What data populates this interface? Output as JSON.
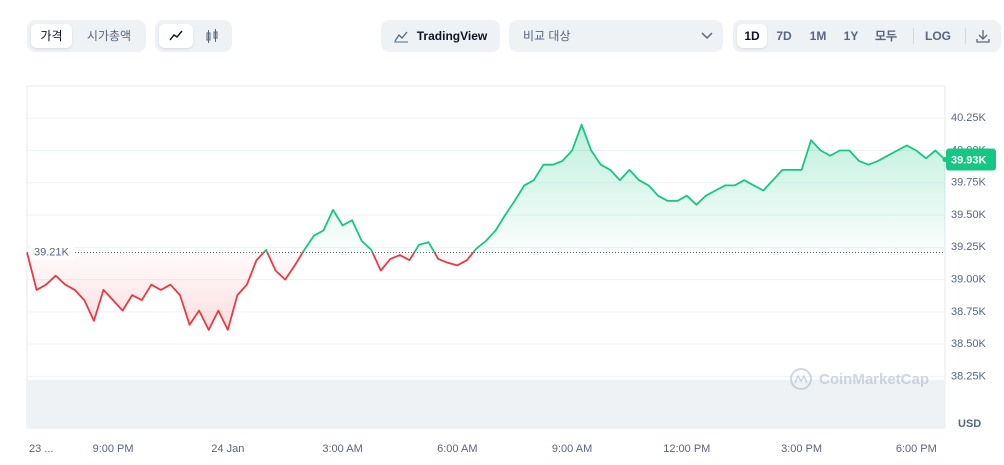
{
  "toolbar": {
    "view_tabs": [
      "가격",
      "시가총액"
    ],
    "tradingview": "TradingView",
    "compare": "비교 대상",
    "ranges": [
      "1D",
      "7D",
      "1M",
      "1Y",
      "모두"
    ],
    "log": "LOG"
  },
  "chart_data": {
    "type": "line",
    "categories": [
      "23 ...",
      null,
      null,
      null,
      null,
      null,
      null,
      null,
      null,
      "9:00 PM",
      null,
      null,
      null,
      null,
      null,
      null,
      null,
      null,
      null,
      null,
      null,
      "24 Jan",
      null,
      null,
      null,
      null,
      null,
      null,
      null,
      null,
      null,
      null,
      null,
      "3:00 AM",
      null,
      null,
      null,
      null,
      null,
      null,
      null,
      null,
      null,
      null,
      null,
      "6:00 AM",
      null,
      null,
      null,
      null,
      null,
      null,
      null,
      null,
      null,
      null,
      null,
      "9:00 AM",
      null,
      null,
      null,
      null,
      null,
      null,
      null,
      null,
      null,
      null,
      null,
      "12:00 PM",
      null,
      null,
      null,
      null,
      null,
      null,
      null,
      null,
      null,
      null,
      null,
      "3:00 PM",
      null,
      null,
      null,
      null,
      null,
      null,
      null,
      null,
      null,
      null,
      null,
      "6:00 PM",
      null,
      null,
      null
    ],
    "values": [
      39210,
      38920,
      38960,
      39030,
      38960,
      38920,
      38840,
      38680,
      38920,
      38840,
      38760,
      38880,
      38840,
      38960,
      38920,
      38960,
      38880,
      38650,
      38760,
      38610,
      38760,
      38610,
      38880,
      38960,
      39150,
      39230,
      39070,
      39000,
      39110,
      39230,
      39340,
      39380,
      39540,
      39420,
      39460,
      39300,
      39230,
      39070,
      39160,
      39190,
      39150,
      39270,
      39290,
      39160,
      39130,
      39110,
      39150,
      39240,
      39300,
      39380,
      39500,
      39610,
      39730,
      39770,
      39890,
      39890,
      39920,
      40000,
      40200,
      40000,
      39890,
      39850,
      39770,
      39850,
      39770,
      39730,
      39650,
      39610,
      39610,
      39650,
      39580,
      39650,
      39690,
      39730,
      39730,
      39770,
      39730,
      39690,
      39770,
      39850,
      39850,
      39850,
      40080,
      40000,
      39960,
      40000,
      40000,
      39920,
      39890,
      39920,
      39960,
      40000,
      40040,
      40000,
      39940,
      40000,
      39930
    ],
    "current_price_label": "39.93K",
    "baseline": {
      "value": 39210,
      "label": "39.21K"
    },
    "up_color": "#16c784",
    "down_color": "#ea3943",
    "ylim": [
      37850,
      40500
    ],
    "yticks": [
      {
        "value": 38250,
        "label": "38.25K"
      },
      {
        "value": 38500,
        "label": "38.50K"
      },
      {
        "value": 38750,
        "label": "38.75K"
      },
      {
        "value": 39000,
        "label": "39.00K"
      },
      {
        "value": 39250,
        "label": "39.25K"
      },
      {
        "value": 39500,
        "label": "39.50K"
      },
      {
        "value": 39750,
        "label": "39.75K"
      },
      {
        "value": 40000,
        "label": "40.00K"
      },
      {
        "value": 40250,
        "label": "40.25K"
      }
    ],
    "y_unit": "USD",
    "watermark": "CoinMarketCap",
    "grid": true
  }
}
